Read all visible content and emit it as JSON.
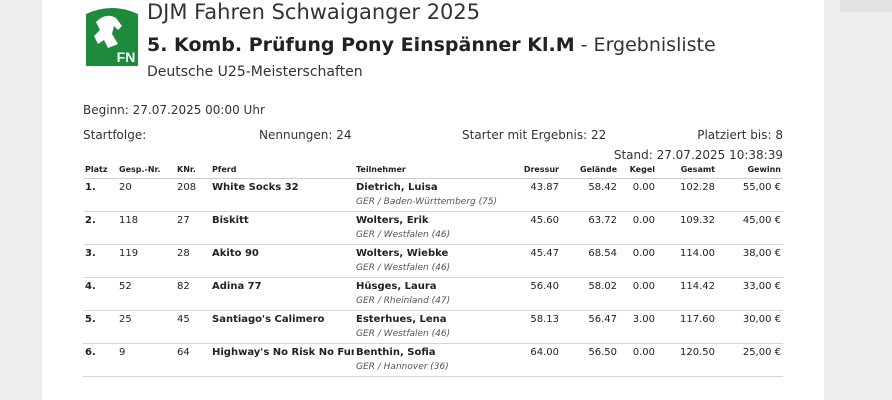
{
  "header": {
    "event_title": "DJM Fahren Schwaiganger 2025",
    "competition_bold": "5. Komb. Prüfung Pony Einspänner Kl.M",
    "competition_suffix": " - Ergebnisliste",
    "subtitle": "Deutsche U25-Meisterschaften",
    "logo_text": "FN",
    "logo_color": "#1e8a3c"
  },
  "info": {
    "beginn": "Beginn: 27.07.2025 00:00 Uhr",
    "startfolge": "Startfolge:",
    "nennungen": "Nennungen: 24",
    "starter": "Starter mit Ergebnis: 22",
    "platziert": "Platziert bis: 8",
    "stand": "Stand: 27.07.2025 10:38:39"
  },
  "table": {
    "columns": {
      "platz": "Platz",
      "gesp": "Gesp.-Nr.",
      "knr": "KNr.",
      "pferd": "Pferd",
      "teilnehmer": "Teilnehmer",
      "dressur": "Dressur",
      "gelaende": "Gelände",
      "kegel": "Kegel",
      "gesamt": "Gesamt",
      "gewinn": "Gewinn"
    },
    "rows": [
      {
        "platz": "1.",
        "gesp": "20",
        "knr": "208",
        "pferd": "White Socks 32",
        "name": "Dietrich, Luisa",
        "club": "GER / Baden-Württemberg (75)",
        "dressur": "43.87",
        "gelaende": "58.42",
        "kegel": "0.00",
        "gesamt": "102.28",
        "gewinn": "55,00 €"
      },
      {
        "platz": "2.",
        "gesp": "118",
        "knr": "27",
        "pferd": "Biskitt",
        "name": "Wolters, Erik",
        "club": "GER / Westfalen (46)",
        "dressur": "45.60",
        "gelaende": "63.72",
        "kegel": "0.00",
        "gesamt": "109.32",
        "gewinn": "45,00 €"
      },
      {
        "platz": "3.",
        "gesp": "119",
        "knr": "28",
        "pferd": "Akito 90",
        "name": "Wolters, Wiebke",
        "club": "GER / Westfalen (46)",
        "dressur": "45.47",
        "gelaende": "68.54",
        "kegel": "0.00",
        "gesamt": "114.00",
        "gewinn": "38,00 €"
      },
      {
        "platz": "4.",
        "gesp": "52",
        "knr": "82",
        "pferd": "Adina 77",
        "name": "Hüsges, Laura",
        "club": "GER / Rheinland (47)",
        "dressur": "56.40",
        "gelaende": "58.02",
        "kegel": "0.00",
        "gesamt": "114.42",
        "gewinn": "33,00 €"
      },
      {
        "platz": "5.",
        "gesp": "25",
        "knr": "45",
        "pferd": "Santiago's Calimero",
        "name": "Esterhues, Lena",
        "club": "GER / Westfalen (46)",
        "dressur": "58.13",
        "gelaende": "56.47",
        "kegel": "3.00",
        "gesamt": "117.60",
        "gewinn": "30,00 €"
      },
      {
        "platz": "6.",
        "gesp": "9",
        "knr": "64",
        "pferd": "Highway's No Risk No Fun",
        "name": "Benthin, Sofia",
        "club": "GER / Hannover (36)",
        "dressur": "64.00",
        "gelaende": "56.50",
        "kegel": "0.00",
        "gesamt": "120.50",
        "gewinn": "25,00 €"
      }
    ]
  }
}
